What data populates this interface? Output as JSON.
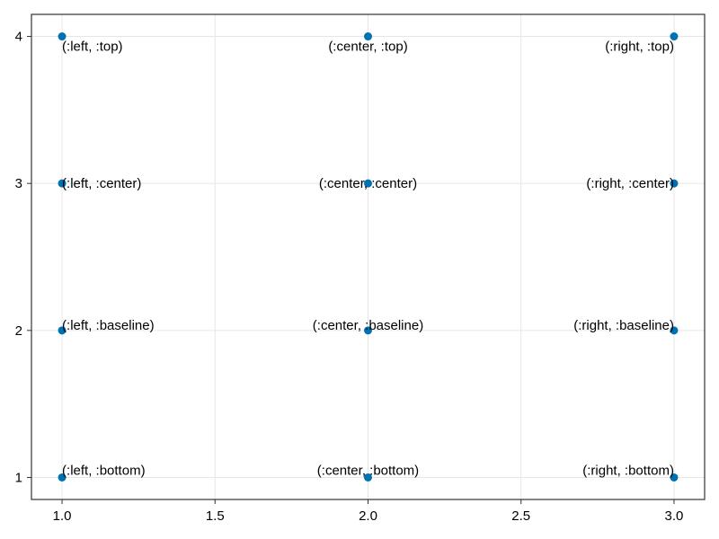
{
  "chart_data": {
    "type": "scatter",
    "title": "",
    "xlabel": "",
    "ylabel": "",
    "xlim": [
      0.9,
      3.1
    ],
    "ylim": [
      0.85,
      4.15
    ],
    "grid": true,
    "x_ticks": [
      1.0,
      1.5,
      2.0,
      2.5,
      3.0
    ],
    "x_tick_labels": [
      "1.0",
      "1.5",
      "2.0",
      "2.5",
      "3.0"
    ],
    "y_ticks": [
      1,
      2,
      3,
      4
    ],
    "y_tick_labels": [
      "1",
      "2",
      "3",
      "4"
    ],
    "marker_color": "#0072b2",
    "points": [
      {
        "x": 1,
        "y": 4,
        "label": "(:left, :top)",
        "halign": "left",
        "valign": "top"
      },
      {
        "x": 2,
        "y": 4,
        "label": "(:center, :top)",
        "halign": "center",
        "valign": "top"
      },
      {
        "x": 3,
        "y": 4,
        "label": "(:right, :top)",
        "halign": "right",
        "valign": "top"
      },
      {
        "x": 1,
        "y": 3,
        "label": "(:left, :center)",
        "halign": "left",
        "valign": "center"
      },
      {
        "x": 2,
        "y": 3,
        "label": "(:center, :center)",
        "halign": "center",
        "valign": "center"
      },
      {
        "x": 3,
        "y": 3,
        "label": "(:right, :center)",
        "halign": "right",
        "valign": "center"
      },
      {
        "x": 1,
        "y": 2,
        "label": "(:left, :baseline)",
        "halign": "left",
        "valign": "baseline"
      },
      {
        "x": 2,
        "y": 2,
        "label": "(:center, :baseline)",
        "halign": "center",
        "valign": "baseline"
      },
      {
        "x": 3,
        "y": 2,
        "label": "(:right, :baseline)",
        "halign": "right",
        "valign": "baseline"
      },
      {
        "x": 1,
        "y": 1,
        "label": "(:left, :bottom)",
        "halign": "left",
        "valign": "bottom"
      },
      {
        "x": 2,
        "y": 1,
        "label": "(:center, :bottom)",
        "halign": "center",
        "valign": "bottom"
      },
      {
        "x": 3,
        "y": 1,
        "label": "(:right, :bottom)",
        "halign": "right",
        "valign": "bottom"
      }
    ]
  }
}
